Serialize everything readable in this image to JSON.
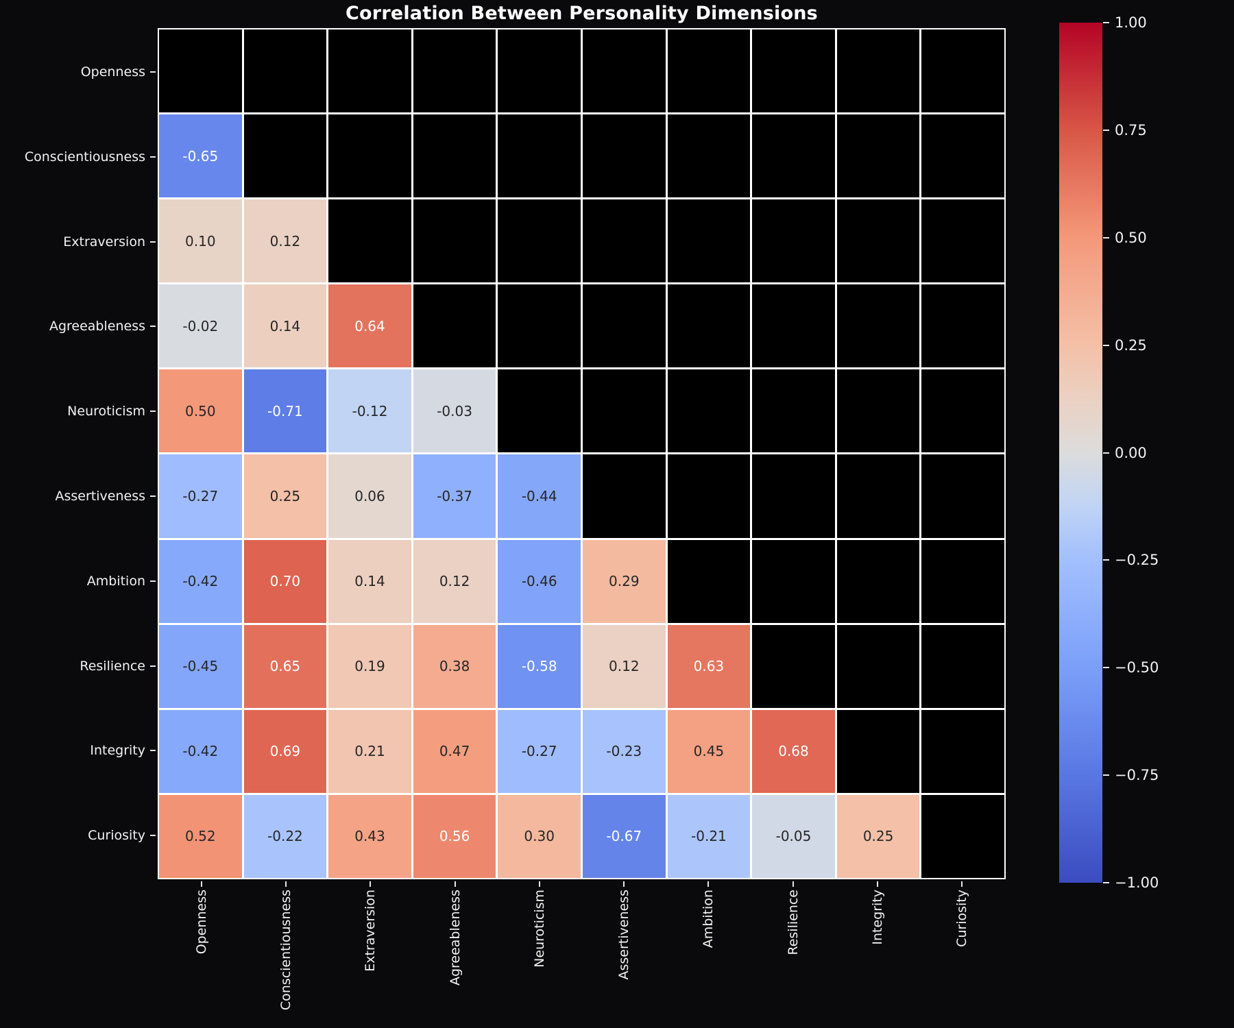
{
  "title": "Correlation Between Personality Dimensions",
  "chart_data": {
    "type": "heatmap",
    "title": "Correlation Between Personality Dimensions",
    "categories": [
      "Openness",
      "Conscientiousness",
      "Extraversion",
      "Agreeableness",
      "Neuroticism",
      "Assertiveness",
      "Ambition",
      "Resilience",
      "Integrity",
      "Curiosity"
    ],
    "matrix": [
      [
        null,
        null,
        null,
        null,
        null,
        null,
        null,
        null,
        null,
        null
      ],
      [
        -0.65,
        null,
        null,
        null,
        null,
        null,
        null,
        null,
        null,
        null
      ],
      [
        0.1,
        0.12,
        null,
        null,
        null,
        null,
        null,
        null,
        null,
        null
      ],
      [
        -0.02,
        0.14,
        0.64,
        null,
        null,
        null,
        null,
        null,
        null,
        null
      ],
      [
        0.5,
        -0.71,
        -0.12,
        -0.03,
        null,
        null,
        null,
        null,
        null,
        null
      ],
      [
        -0.27,
        0.25,
        0.06,
        -0.37,
        -0.44,
        null,
        null,
        null,
        null,
        null
      ],
      [
        -0.42,
        0.7,
        0.14,
        0.12,
        -0.46,
        0.29,
        null,
        null,
        null,
        null
      ],
      [
        -0.45,
        0.65,
        0.19,
        0.38,
        -0.58,
        0.12,
        0.63,
        null,
        null,
        null
      ],
      [
        -0.42,
        0.69,
        0.21,
        0.47,
        -0.27,
        -0.23,
        0.45,
        0.68,
        null,
        null
      ],
      [
        0.52,
        -0.22,
        0.43,
        0.56,
        0.3,
        -0.67,
        -0.21,
        -0.05,
        0.25,
        null
      ]
    ],
    "mask": "upper triangle including diagonal shown as black cells",
    "value_range": [
      -1,
      1
    ],
    "annotation_format": "two decimals",
    "grid": "white cell borders on",
    "legend_position": "right vertical colorbar",
    "colormap": {
      "name": "coolwarm",
      "anchors": [
        [
          -1.0,
          "#3B4CC0"
        ],
        [
          -0.75,
          "#5977E3"
        ],
        [
          -0.5,
          "#7B9FF9"
        ],
        [
          -0.25,
          "#A2BFFE"
        ],
        [
          -0.125,
          "#C0D4F5"
        ],
        [
          0.0,
          "#DCDCDC"
        ],
        [
          0.125,
          "#EBD1C2"
        ],
        [
          0.25,
          "#F4C0A7"
        ],
        [
          0.5,
          "#F4987A"
        ],
        [
          0.75,
          "#D85646"
        ],
        [
          1.0,
          "#B40426"
        ]
      ]
    },
    "colorbar_ticks": [
      {
        "value": 1.0,
        "label": "1.00"
      },
      {
        "value": 0.75,
        "label": "0.75"
      },
      {
        "value": 0.5,
        "label": "0.50"
      },
      {
        "value": 0.25,
        "label": "0.25"
      },
      {
        "value": 0.0,
        "label": "0.00"
      },
      {
        "value": -0.25,
        "label": "−0.25"
      },
      {
        "value": -0.5,
        "label": "−0.50"
      },
      {
        "value": -0.75,
        "label": "−0.75"
      },
      {
        "value": -1.0,
        "label": "−1.00"
      }
    ]
  },
  "colors": {
    "background": "#0A0A0C",
    "masked_cell": "#000000",
    "gridline": "#FFFFFF",
    "axis_label": "#F2F2F2",
    "title": "#FFFFFF",
    "annotation_dark": "#262626",
    "annotation_light": "#FFFFFF"
  }
}
